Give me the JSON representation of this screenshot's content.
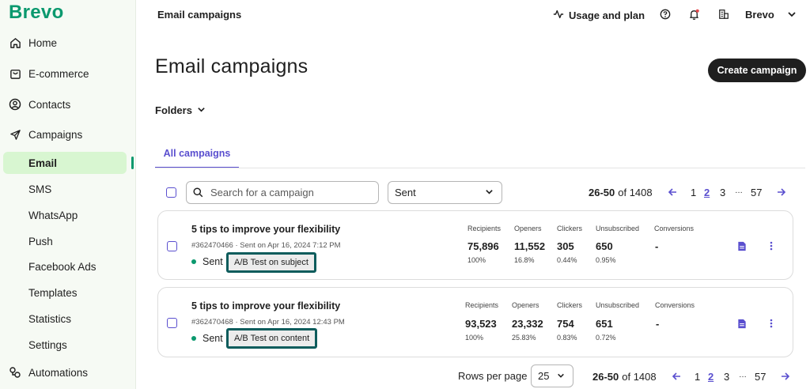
{
  "brand": {
    "logo_text": "Brevo",
    "accent": "#0b996e",
    "link_color": "#5a4fcf"
  },
  "sidebar": {
    "items": [
      {
        "label": "Home",
        "icon": "home-icon"
      },
      {
        "label": "E-commerce",
        "icon": "shopping-bag-icon"
      },
      {
        "label": "Contacts",
        "icon": "contacts-icon"
      },
      {
        "label": "Campaigns",
        "icon": "send-icon"
      },
      {
        "label": "Email",
        "active": true
      },
      {
        "label": "SMS"
      },
      {
        "label": "WhatsApp"
      },
      {
        "label": "Push"
      },
      {
        "label": "Facebook Ads"
      },
      {
        "label": "Templates"
      },
      {
        "label": "Statistics"
      },
      {
        "label": "Settings"
      },
      {
        "label": "Automations",
        "icon": "automations-icon"
      }
    ]
  },
  "topbar": {
    "title": "Email campaigns",
    "usage_label": "Usage and plan",
    "account_label": "Brevo",
    "icons": [
      "activity-icon",
      "help-icon",
      "bell-icon",
      "building-icon",
      "chevron-down-icon"
    ]
  },
  "header": {
    "title": "Email campaigns",
    "create_button": "Create campaign",
    "folders_label": "Folders"
  },
  "tabs": [
    {
      "label": "All campaigns",
      "active": true
    }
  ],
  "filters": {
    "search_placeholder": "Search for a campaign",
    "status_selected": "Sent"
  },
  "pagination": {
    "range": "26-50",
    "of_label": "of 1408",
    "pages": [
      "1",
      "2",
      "3",
      "…",
      "57"
    ],
    "current_page": "2"
  },
  "stats_labels": {
    "recipients": "Recipients",
    "openers": "Openers",
    "clickers": "Clickers",
    "unsubscribed": "Unsubscribed",
    "conversions": "Conversions"
  },
  "campaigns": [
    {
      "title": "5 tips to improve your flexibility",
      "meta": "#362470466 · Sent on Apr 16, 2024 7:12 PM",
      "status": "Sent",
      "tag": "A/B Test on subject",
      "recipients": "75,896",
      "recipients_pct": "100%",
      "openers": "11,552",
      "openers_pct": "16.8%",
      "clickers": "305",
      "clickers_pct": "0.44%",
      "unsubscribed": "650",
      "unsubscribed_pct": "0.95%",
      "conversions": "-"
    },
    {
      "title": "5 tips to improve your flexibility",
      "meta": "#362470468 · Sent on Apr 16, 2024 12:43 PM",
      "status": "Sent",
      "tag": "A/B Test on content",
      "recipients": "93,523",
      "recipients_pct": "100%",
      "openers": "23,332",
      "openers_pct": "25.83%",
      "clickers": "754",
      "clickers_pct": "0.83%",
      "unsubscribed": "651",
      "unsubscribed_pct": "0.72%",
      "conversions": "-"
    }
  ],
  "footer": {
    "rows_per_page_label": "Rows per page",
    "rows_per_page_value": "25"
  }
}
